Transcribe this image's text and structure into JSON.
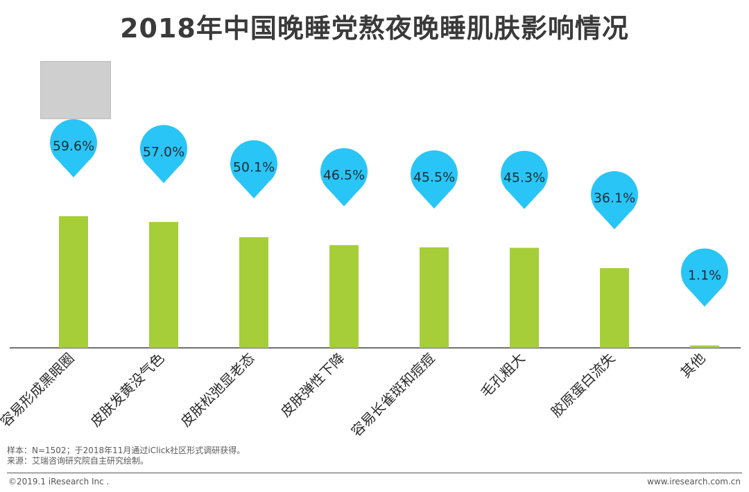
{
  "chart_data": {
    "type": "bar",
    "title": "2018年中国晚睡党熬夜晚睡肌肤影响情况",
    "categories": [
      "容易形成黑眼圈",
      "皮肤发黄没气色",
      "皮肤松弛显老态",
      "皮肤弹性下降",
      "容易长雀斑和痘痘",
      "毛孔粗大",
      "胶原蛋白流失",
      "其他"
    ],
    "values": [
      59.6,
      57.0,
      50.1,
      46.5,
      45.5,
      45.3,
      36.1,
      1.1
    ],
    "value_labels": [
      "59.6%",
      "57.0%",
      "50.1%",
      "46.5%",
      "45.5%",
      "45.3%",
      "36.1%",
      "1.1%"
    ],
    "ylim": [
      0,
      100
    ],
    "xlabel": "",
    "ylabel": "",
    "bar_color": "#a6ce39",
    "marker_color": "#29c5f6"
  },
  "notes": {
    "sample": "样本：N=1502；于2018年11月通过iClick社区形式调研获得。",
    "source": "来源：艾瑞咨询研究院自主研究绘制。"
  },
  "footer": {
    "copyright": "©2019.1 iResearch Inc .",
    "website": "www.iresearch.com.cn"
  }
}
